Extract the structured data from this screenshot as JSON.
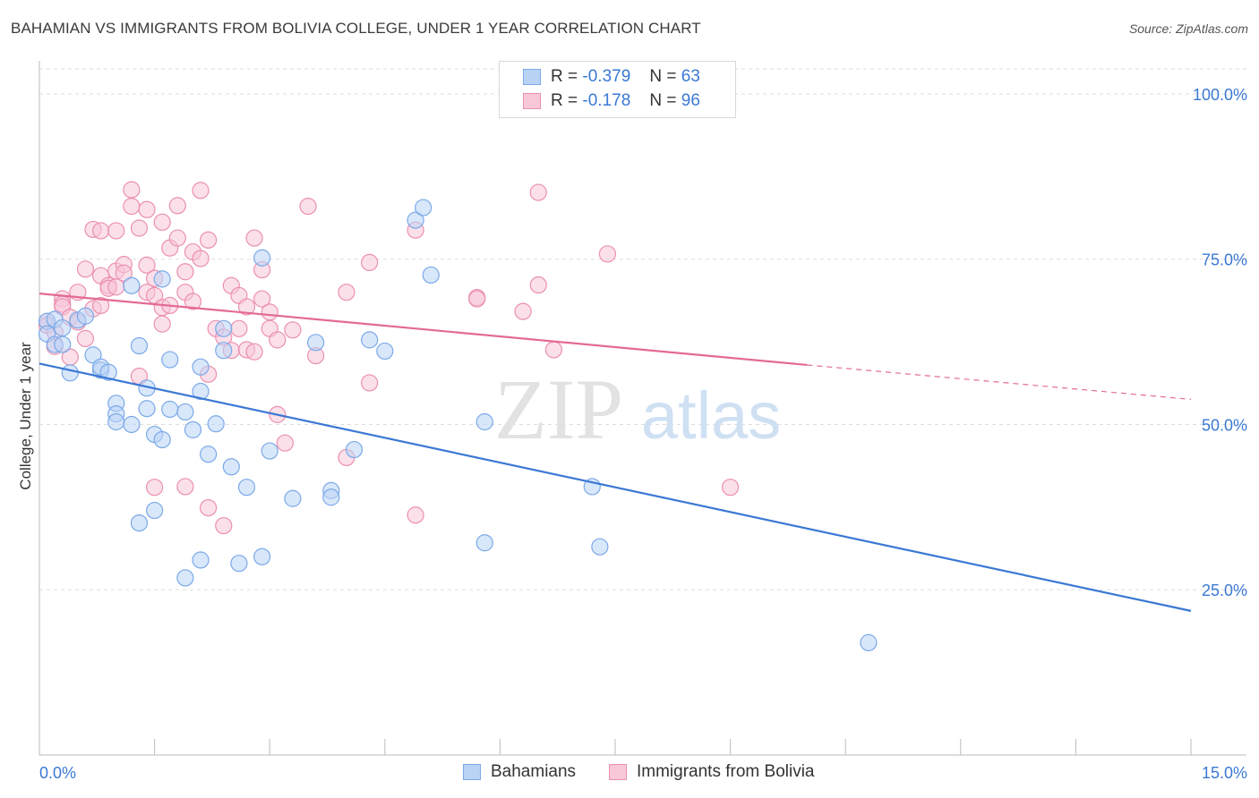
{
  "title": "BAHAMIAN VS IMMIGRANTS FROM BOLIVIA COLLEGE, UNDER 1 YEAR CORRELATION CHART",
  "source": "Source: ZipAtlas.com",
  "watermark": {
    "zip": "ZIP",
    "atlas": "atlas"
  },
  "legend": {
    "r_label": "R =",
    "n_label": "N =",
    "series": [
      {
        "r": "-0.379",
        "n": "63",
        "color": "#7aa9e8",
        "fill": "#b9d3f5"
      },
      {
        "r": "-0.178",
        "n": "96",
        "color": "#eb8fb0",
        "fill": "#f8c7d8"
      }
    ]
  },
  "bottom_legend": [
    "Bahamians",
    "Immigrants from Bolivia"
  ],
  "chart_data": {
    "type": "scatter",
    "title": "BAHAMIAN VS IMMIGRANTS FROM BOLIVIA COLLEGE, UNDER 1 YEAR CORRELATION CHART",
    "ylabel": "College, Under 1 year",
    "xlabel": "",
    "xlim": [
      0,
      15
    ],
    "ylim": [
      0,
      105
    ],
    "x_tick_labels": [
      "0.0%",
      "15.0%"
    ],
    "y_ticks": [
      {
        "value": 25,
        "label": "25.0%"
      },
      {
        "value": 50,
        "label": "50.0%"
      },
      {
        "value": 75,
        "label": "75.0%"
      },
      {
        "value": 100,
        "label": "100.0%"
      }
    ],
    "grid": true,
    "legend_position": "top-center",
    "series": [
      {
        "name": "Bahamians",
        "color": "#3a78d4",
        "trend": {
          "x0": 0,
          "y0": 59.2,
          "x1": 15,
          "y1": 21.8
        },
        "points": [
          [
            0.1,
            65.6
          ],
          [
            0.1,
            63.7
          ],
          [
            0.2,
            65.9
          ],
          [
            0.2,
            62.1
          ],
          [
            0.3,
            62.1
          ],
          [
            0.3,
            64.6
          ],
          [
            0.4,
            57.8
          ],
          [
            0.5,
            65.8
          ],
          [
            0.6,
            66.4
          ],
          [
            0.7,
            60.5
          ],
          [
            0.8,
            58.2
          ],
          [
            0.8,
            58.7
          ],
          [
            0.9,
            57.9
          ],
          [
            1.0,
            53.2
          ],
          [
            1.0,
            51.6
          ],
          [
            1.0,
            50.4
          ],
          [
            1.2,
            71.0
          ],
          [
            1.2,
            50.0
          ],
          [
            1.3,
            35.1
          ],
          [
            1.3,
            61.9
          ],
          [
            1.4,
            55.5
          ],
          [
            1.4,
            52.4
          ],
          [
            1.5,
            37.0
          ],
          [
            1.5,
            48.5
          ],
          [
            1.6,
            47.7
          ],
          [
            1.6,
            72.0
          ],
          [
            1.7,
            52.3
          ],
          [
            1.7,
            59.8
          ],
          [
            1.9,
            51.9
          ],
          [
            1.9,
            26.8
          ],
          [
            2.0,
            49.2
          ],
          [
            2.1,
            58.7
          ],
          [
            2.1,
            55.0
          ],
          [
            2.1,
            29.5
          ],
          [
            2.2,
            45.5
          ],
          [
            2.3,
            50.1
          ],
          [
            2.4,
            64.5
          ],
          [
            2.4,
            61.2
          ],
          [
            2.5,
            43.6
          ],
          [
            2.6,
            29.0
          ],
          [
            2.7,
            40.5
          ],
          [
            2.9,
            75.2
          ],
          [
            2.9,
            30.0
          ],
          [
            3.0,
            46.0
          ],
          [
            3.3,
            38.8
          ],
          [
            3.6,
            62.4
          ],
          [
            3.8,
            40.0
          ],
          [
            3.8,
            39.0
          ],
          [
            4.1,
            46.2
          ],
          [
            4.3,
            62.8
          ],
          [
            4.5,
            61.1
          ],
          [
            4.9,
            80.9
          ],
          [
            5.0,
            82.8
          ],
          [
            5.1,
            72.6
          ],
          [
            5.8,
            50.4
          ],
          [
            5.8,
            32.1
          ],
          [
            7.2,
            40.6
          ],
          [
            7.3,
            31.5
          ],
          [
            10.8,
            17.0
          ]
        ]
      },
      {
        "name": "Immigrants from Bolivia",
        "color": "#e36a95",
        "trend": {
          "x0": 0,
          "y0": 69.8,
          "x1": 10.0,
          "y1": 59.0
        },
        "trend_dashed": {
          "x0": 10.0,
          "y0": 59.0,
          "x1": 15,
          "y1": 53.8
        },
        "points": [
          [
            0.1,
            65.6
          ],
          [
            0.1,
            65.0
          ],
          [
            0.2,
            64.0
          ],
          [
            0.2,
            61.8
          ],
          [
            0.3,
            69.0
          ],
          [
            0.3,
            68.2
          ],
          [
            0.3,
            67.8
          ],
          [
            0.4,
            66.2
          ],
          [
            0.4,
            60.2
          ],
          [
            0.5,
            70.0
          ],
          [
            0.5,
            65.5
          ],
          [
            0.6,
            73.5
          ],
          [
            0.6,
            63.0
          ],
          [
            0.7,
            79.5
          ],
          [
            0.7,
            67.5
          ],
          [
            0.8,
            79.3
          ],
          [
            0.8,
            72.5
          ],
          [
            0.8,
            68.0
          ],
          [
            0.9,
            71.0
          ],
          [
            0.9,
            70.6
          ],
          [
            1.0,
            73.2
          ],
          [
            1.0,
            70.8
          ],
          [
            1.0,
            79.3
          ],
          [
            1.1,
            74.2
          ],
          [
            1.1,
            72.9
          ],
          [
            1.2,
            85.5
          ],
          [
            1.2,
            83.0
          ],
          [
            1.3,
            79.7
          ],
          [
            1.3,
            57.3
          ],
          [
            1.4,
            82.5
          ],
          [
            1.4,
            74.1
          ],
          [
            1.4,
            70.0
          ],
          [
            1.5,
            72.1
          ],
          [
            1.5,
            69.5
          ],
          [
            1.5,
            40.5
          ],
          [
            1.6,
            80.6
          ],
          [
            1.6,
            67.7
          ],
          [
            1.6,
            65.2
          ],
          [
            1.7,
            76.7
          ],
          [
            1.7,
            68.0
          ],
          [
            1.8,
            83.1
          ],
          [
            1.8,
            78.2
          ],
          [
            1.9,
            73.1
          ],
          [
            1.9,
            70.0
          ],
          [
            1.9,
            40.6
          ],
          [
            2.0,
            76.1
          ],
          [
            2.0,
            68.6
          ],
          [
            2.1,
            85.4
          ],
          [
            2.1,
            75.1
          ],
          [
            2.2,
            77.9
          ],
          [
            2.2,
            57.6
          ],
          [
            2.2,
            37.4
          ],
          [
            2.3,
            64.5
          ],
          [
            2.4,
            63.2
          ],
          [
            2.4,
            34.7
          ],
          [
            2.5,
            71.0
          ],
          [
            2.5,
            61.2
          ],
          [
            2.6,
            69.5
          ],
          [
            2.6,
            64.5
          ],
          [
            2.7,
            67.8
          ],
          [
            2.7,
            61.3
          ],
          [
            2.8,
            78.2
          ],
          [
            2.8,
            61.0
          ],
          [
            2.9,
            73.4
          ],
          [
            2.9,
            69.0
          ],
          [
            3.0,
            67.0
          ],
          [
            3.0,
            64.5
          ],
          [
            3.1,
            62.8
          ],
          [
            3.1,
            51.5
          ],
          [
            3.2,
            47.2
          ],
          [
            3.3,
            64.3
          ],
          [
            3.5,
            83.0
          ],
          [
            3.6,
            60.4
          ],
          [
            4.0,
            70.0
          ],
          [
            4.0,
            45.0
          ],
          [
            4.3,
            74.5
          ],
          [
            4.3,
            56.3
          ],
          [
            4.9,
            79.4
          ],
          [
            4.9,
            36.3
          ],
          [
            5.7,
            69.2
          ],
          [
            5.7,
            69.0
          ],
          [
            6.3,
            67.1
          ],
          [
            6.5,
            71.1
          ],
          [
            6.5,
            85.1
          ],
          [
            6.7,
            61.3
          ],
          [
            7.4,
            75.8
          ],
          [
            9.0,
            40.5
          ]
        ]
      }
    ]
  }
}
